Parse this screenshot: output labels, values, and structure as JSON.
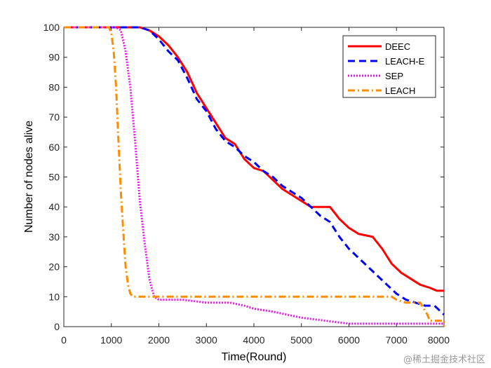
{
  "chart_data": {
    "type": "line",
    "title": "",
    "xlabel": "Time(Round)",
    "ylabel": "Number of nodes alive",
    "xlim": [
      0,
      8000
    ],
    "ylim": [
      0,
      100
    ],
    "xticks": [
      0,
      1000,
      2000,
      3000,
      4000,
      5000,
      6000,
      7000,
      8000
    ],
    "xtick_labels": [
      "0",
      "1000",
      "2000",
      "3000",
      "4000",
      "5000",
      "6000",
      "7000",
      "8000"
    ],
    "yticks": [
      0,
      10,
      20,
      30,
      40,
      50,
      60,
      70,
      80,
      90,
      100
    ],
    "ytick_labels": [
      "0",
      "10",
      "20",
      "30",
      "40",
      "50",
      "60",
      "70",
      "80",
      "90",
      "100"
    ],
    "grid": false,
    "legend_position": "top-right",
    "series": [
      {
        "name": "DEEC",
        "color": "#ff0000",
        "style": "solid",
        "points": [
          [
            0,
            100
          ],
          [
            1600,
            100
          ],
          [
            1800,
            99
          ],
          [
            2000,
            97
          ],
          [
            2200,
            94
          ],
          [
            2400,
            90
          ],
          [
            2600,
            85
          ],
          [
            2800,
            78
          ],
          [
            3000,
            73
          ],
          [
            3200,
            68
          ],
          [
            3400,
            63
          ],
          [
            3600,
            61
          ],
          [
            3800,
            56
          ],
          [
            4000,
            53
          ],
          [
            4200,
            52
          ],
          [
            4400,
            49
          ],
          [
            4600,
            46
          ],
          [
            4800,
            44
          ],
          [
            5000,
            42
          ],
          [
            5200,
            40
          ],
          [
            5600,
            40
          ],
          [
            5800,
            36
          ],
          [
            6000,
            33
          ],
          [
            6200,
            31
          ],
          [
            6500,
            30
          ],
          [
            6700,
            26
          ],
          [
            6900,
            21
          ],
          [
            7100,
            18
          ],
          [
            7300,
            16
          ],
          [
            7500,
            14
          ],
          [
            7700,
            13
          ],
          [
            7850,
            12
          ],
          [
            8000,
            12
          ]
        ]
      },
      {
        "name": "LEACH-E",
        "color": "#0000ff",
        "style": "dashed",
        "points": [
          [
            0,
            100
          ],
          [
            1600,
            100
          ],
          [
            1800,
            99
          ],
          [
            2000,
            96
          ],
          [
            2200,
            92
          ],
          [
            2400,
            89
          ],
          [
            2600,
            83
          ],
          [
            2800,
            76
          ],
          [
            3000,
            72
          ],
          [
            3200,
            66
          ],
          [
            3400,
            62
          ],
          [
            3600,
            60
          ],
          [
            3800,
            57
          ],
          [
            4000,
            55
          ],
          [
            4200,
            52
          ],
          [
            4400,
            50
          ],
          [
            4600,
            47
          ],
          [
            4800,
            45
          ],
          [
            5000,
            43
          ],
          [
            5200,
            40
          ],
          [
            5400,
            37
          ],
          [
            5600,
            35
          ],
          [
            5800,
            30
          ],
          [
            6000,
            26
          ],
          [
            6200,
            23
          ],
          [
            6400,
            20
          ],
          [
            6600,
            17
          ],
          [
            6800,
            14
          ],
          [
            7000,
            11
          ],
          [
            7200,
            9
          ],
          [
            7400,
            8
          ],
          [
            7600,
            7
          ],
          [
            7800,
            7
          ],
          [
            8000,
            4
          ]
        ]
      },
      {
        "name": "SEP",
        "color": "#e815e8",
        "style": "dotted",
        "points": [
          [
            0,
            100
          ],
          [
            1100,
            100
          ],
          [
            1200,
            99
          ],
          [
            1300,
            92
          ],
          [
            1400,
            80
          ],
          [
            1500,
            62
          ],
          [
            1600,
            42
          ],
          [
            1700,
            28
          ],
          [
            1800,
            16
          ],
          [
            1900,
            10
          ],
          [
            2000,
            9
          ],
          [
            2500,
            9
          ],
          [
            3000,
            8
          ],
          [
            3500,
            8
          ],
          [
            3800,
            7
          ],
          [
            4000,
            6
          ],
          [
            4400,
            5
          ],
          [
            5000,
            3
          ],
          [
            5500,
            2
          ],
          [
            6000,
            1
          ],
          [
            7000,
            1
          ],
          [
            8000,
            1
          ]
        ]
      },
      {
        "name": "LEACH",
        "color": "#ff8c00",
        "style": "dashdot",
        "points": [
          [
            0,
            100
          ],
          [
            950,
            100
          ],
          [
            1000,
            98
          ],
          [
            1050,
            92
          ],
          [
            1100,
            80
          ],
          [
            1150,
            62
          ],
          [
            1200,
            45
          ],
          [
            1250,
            32
          ],
          [
            1300,
            20
          ],
          [
            1350,
            14
          ],
          [
            1400,
            11
          ],
          [
            1450,
            10
          ],
          [
            2000,
            10
          ],
          [
            3000,
            10
          ],
          [
            4000,
            10
          ],
          [
            5000,
            10
          ],
          [
            6000,
            10
          ],
          [
            6900,
            10
          ],
          [
            7000,
            9
          ],
          [
            7200,
            8
          ],
          [
            7500,
            8
          ],
          [
            7650,
            4
          ],
          [
            7700,
            2
          ],
          [
            8000,
            2
          ],
          [
            8000,
            0
          ]
        ]
      }
    ]
  },
  "watermark": "@稀土掘金技术社区"
}
